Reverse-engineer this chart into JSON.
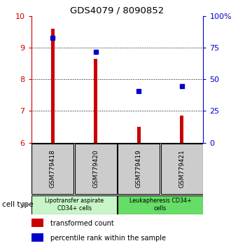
{
  "title": "GDS4079 / 8090852",
  "samples": [
    "GSM779418",
    "GSM779420",
    "GSM779419",
    "GSM779421"
  ],
  "red_values": [
    9.6,
    8.65,
    6.5,
    6.85
  ],
  "blue_values": [
    9.32,
    8.88,
    7.62,
    7.78
  ],
  "ylim_left": [
    6,
    10
  ],
  "ylim_right": [
    0,
    100
  ],
  "yticks_left": [
    6,
    7,
    8,
    9,
    10
  ],
  "yticks_right": [
    0,
    25,
    50,
    75,
    100
  ],
  "ytick_labels_right": [
    "0",
    "25",
    "50",
    "75",
    "100%"
  ],
  "groups": [
    {
      "label": "Lipotransfer aspirate\nCD34+ cells",
      "color": "#c8f5c8",
      "samples": [
        0,
        1
      ]
    },
    {
      "label": "Leukapheresis CD34+\ncells",
      "color": "#66dd66",
      "samples": [
        2,
        3
      ]
    }
  ],
  "bar_color": "#cc0000",
  "dot_color": "#0000cc",
  "legend_red": "transformed count",
  "legend_blue": "percentile rank within the sample",
  "cell_type_label": "cell type",
  "left_axis_color": "#cc0000",
  "right_axis_color": "#0000cc",
  "bg_color": "#ffffff",
  "sample_box_color": "#cccccc"
}
